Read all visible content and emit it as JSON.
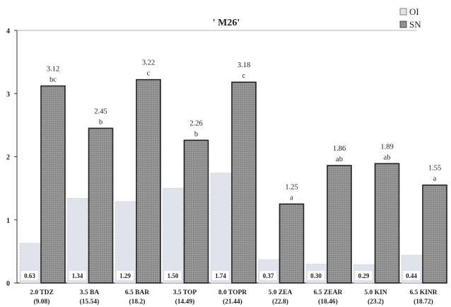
{
  "chart_data": {
    "type": "bar",
    "title": "' M26'",
    "xlabel": "",
    "ylabel": "",
    "ylim": [
      0,
      4
    ],
    "yticks": [
      "0",
      "1",
      "2",
      "3",
      "4"
    ],
    "grid": false,
    "legend_position": "top-right",
    "categories": [
      {
        "name": "2.0 TDZ",
        "sub": "(9.08)"
      },
      {
        "name": "3.5 BA",
        "sub": "(15.54)"
      },
      {
        "name": "6.5 BAR",
        "sub": "(18.2)"
      },
      {
        "name": "3.5 TOP",
        "sub": "(14.49)"
      },
      {
        "name": "8.0 TOPR",
        "sub": "(21.44)"
      },
      {
        "name": "5.0 ZEA",
        "sub": "(22.8)"
      },
      {
        "name": "6.5 ZEAR",
        "sub": "(18.46)"
      },
      {
        "name": "5.0 KIN",
        "sub": "(23.2)"
      },
      {
        "name": "6.5 KINR",
        "sub": "(18.72)"
      }
    ],
    "series": [
      {
        "name": "OI",
        "color": "#e4e6ee",
        "values": [
          0.63,
          1.34,
          1.29,
          1.5,
          1.74,
          0.37,
          0.3,
          0.29,
          0.44
        ],
        "labels": [
          "0.63",
          "1.34",
          "1.29",
          "1.50",
          "1.74",
          "0.37",
          "0.30",
          "0.29",
          "0.44"
        ]
      },
      {
        "name": "SN",
        "color": "#8a8a8a",
        "values": [
          3.12,
          2.45,
          3.22,
          2.26,
          3.18,
          1.25,
          1.86,
          1.89,
          1.55
        ],
        "labels": [
          "3.12",
          "2.45",
          "3.22",
          "2.26",
          "3.18",
          "1.25",
          "1.86",
          "1.89",
          "1.55"
        ],
        "letters": [
          "bc",
          "b",
          "c",
          "b",
          "c",
          "a",
          "ab",
          "ab",
          "a"
        ]
      }
    ]
  }
}
